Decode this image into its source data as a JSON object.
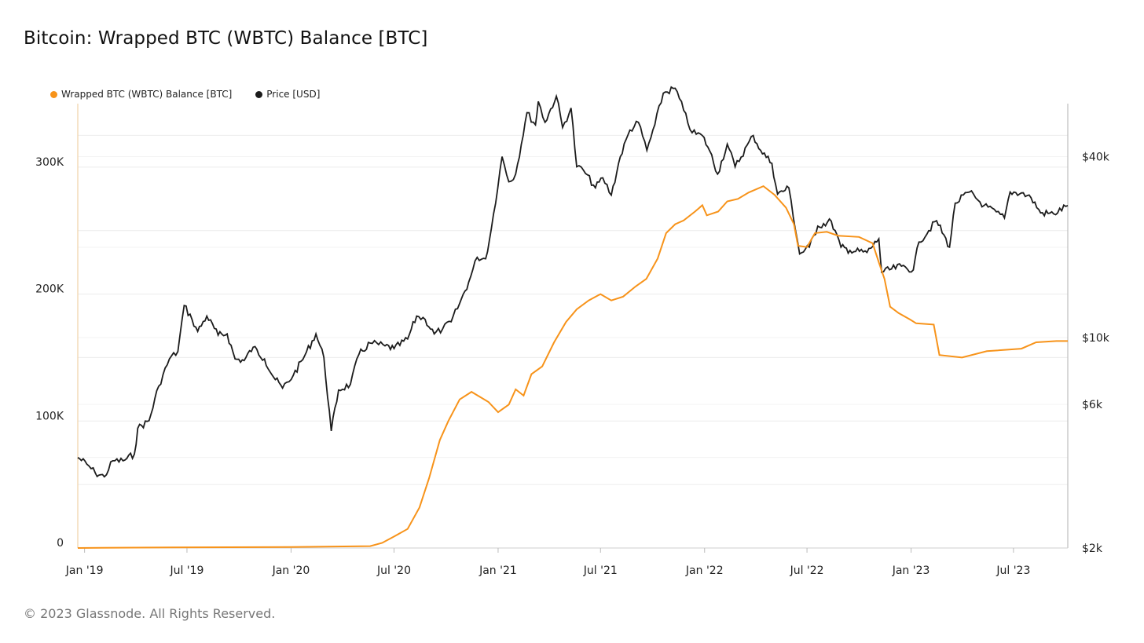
{
  "title": "Bitcoin: Wrapped BTC (WBTC) Balance [BTC]",
  "footer": "© 2023 Glassnode. All Rights Reserved.",
  "colors": {
    "wbtc": "#F7931A",
    "price": "#1c1c1c",
    "grid": "#ececec",
    "axis": "#bdbdbd"
  },
  "chart_data": {
    "type": "line",
    "title": "Bitcoin: Wrapped BTC (WBTC) Balance [BTC]",
    "x_ticks": [
      "Jan '19",
      "Jul '19",
      "Jan '20",
      "Jul '20",
      "Jan '21",
      "Jul '21",
      "Jan '22",
      "Jul '22",
      "Jan '23",
      "Jul '23"
    ],
    "x_range": [
      "2018-12-20",
      "2023-10-05"
    ],
    "y_left": {
      "ticks": [
        0,
        100000,
        200000,
        300000
      ],
      "tick_labels": [
        "0",
        "100K",
        "200K",
        "300K"
      ],
      "ylim": [
        0,
        350000
      ]
    },
    "y_right": {
      "scale": "log",
      "ticks": [
        2000,
        6000,
        10000,
        40000
      ],
      "tick_labels": [
        "$2k",
        "$6k",
        "$10k",
        "$40k"
      ],
      "ylim": [
        2000,
        60000
      ]
    },
    "grid": true,
    "legend_position": "top-left",
    "series": [
      {
        "name": "Wrapped BTC (WBTC) Balance [BTC]",
        "axis": "left",
        "color": "#F7931A",
        "points": [
          [
            "2018-12-20",
            0
          ],
          [
            "2019-06-01",
            500
          ],
          [
            "2020-01-01",
            800
          ],
          [
            "2020-05-20",
            1500
          ],
          [
            "2020-06-10",
            4000
          ],
          [
            "2020-07-01",
            9000
          ],
          [
            "2020-07-25",
            15000
          ],
          [
            "2020-08-15",
            32000
          ],
          [
            "2020-09-01",
            55000
          ],
          [
            "2020-09-20",
            85000
          ],
          [
            "2020-10-05",
            100000
          ],
          [
            "2020-10-25",
            117000
          ],
          [
            "2020-11-15",
            123000
          ],
          [
            "2020-12-15,",
            115000
          ],
          [
            "2021-01-01",
            107000
          ],
          [
            "2021-01-20",
            113000
          ],
          [
            "2021-02-01",
            125000
          ],
          [
            "2021-02-15",
            120000
          ],
          [
            "2021-03-01",
            137000
          ],
          [
            "2021-03-20",
            143000
          ],
          [
            "2021-04-10",
            162000
          ],
          [
            "2021-05-01",
            178000
          ],
          [
            "2021-05-20",
            188000
          ],
          [
            "2021-06-10",
            195000
          ],
          [
            "2021-07-01",
            200000
          ],
          [
            "2021-07-20",
            195000
          ],
          [
            "2021-08-10",
            198000
          ],
          [
            "2021-09-01",
            206000
          ],
          [
            "2021-09-20",
            212000
          ],
          [
            "2021-10-10",
            228000
          ],
          [
            "2021-10-25",
            248000
          ],
          [
            "2021-11-10",
            255000
          ],
          [
            "2021-11-25",
            258000
          ],
          [
            "2021-12-15",
            265000
          ],
          [
            "2021-12-28",
            270000
          ],
          [
            "2022-01-05",
            262000
          ],
          [
            "2022-01-25",
            265000
          ],
          [
            "2022-02-10",
            273000
          ],
          [
            "2022-03-01",
            275000
          ],
          [
            "2022-03-20",
            280000
          ],
          [
            "2022-04-15",
            285000
          ],
          [
            "2022-05-05",
            278000
          ],
          [
            "2022-05-25",
            268000
          ],
          [
            "2022-06-08",
            255000
          ],
          [
            "2022-06-15",
            238000
          ],
          [
            "2022-07-01",
            237000
          ],
          [
            "2022-07-15",
            248000
          ],
          [
            "2022-08-05",
            249000
          ],
          [
            "2022-08-25",
            246000
          ],
          [
            "2022-10-01",
            245000
          ],
          [
            "2022-10-25",
            240000
          ],
          [
            "2022-11-05",
            225000
          ],
          [
            "2022-11-15",
            212000
          ],
          [
            "2022-11-25",
            190000
          ],
          [
            "2022-12-10",
            185000
          ],
          [
            "2022-12-30",
            180000
          ],
          [
            "2023-01-10",
            177000
          ],
          [
            "2023-02-10",
            176000
          ],
          [
            "2023-02-20",
            152000
          ],
          [
            "2023-04-01",
            150000
          ],
          [
            "2023-05-15",
            155000
          ],
          [
            "2023-07-15",
            157000
          ],
          [
            "2023-08-10",
            162000
          ],
          [
            "2023-09-15",
            163000
          ],
          [
            "2023-10-05",
            163000
          ]
        ]
      },
      {
        "name": "Price [USD]",
        "axis": "right",
        "color": "#1c1c1c",
        "points": [
          [
            "2018-12-20",
            4000
          ],
          [
            "2019-01-05",
            3800
          ],
          [
            "2019-01-20",
            3550
          ],
          [
            "2019-02-05",
            3450
          ],
          [
            "2019-02-20",
            3900
          ],
          [
            "2019-03-10",
            3900
          ],
          [
            "2019-03-30",
            4100
          ],
          [
            "2019-04-05",
            5000
          ],
          [
            "2019-04-25",
            5300
          ],
          [
            "2019-05-12",
            6900
          ],
          [
            "2019-05-31",
            8500
          ],
          [
            "2019-06-15",
            9000
          ],
          [
            "2019-06-26",
            12800
          ],
          [
            "2019-07-10",
            11500
          ],
          [
            "2019-07-20",
            10500
          ],
          [
            "2019-08-05",
            11800
          ],
          [
            "2019-08-25",
            10200
          ],
          [
            "2019-09-10",
            10300
          ],
          [
            "2019-09-24",
            8500
          ],
          [
            "2019-10-10",
            8400
          ],
          [
            "2019-10-26",
            9300
          ],
          [
            "2019-11-15",
            8500
          ],
          [
            "2019-12-01",
            7400
          ],
          [
            "2019-12-17",
            6800
          ],
          [
            "2020-01-05",
            7500
          ],
          [
            "2020-01-25",
            8700
          ],
          [
            "2020-02-14",
            10300
          ],
          [
            "2020-02-28",
            8600
          ],
          [
            "2020-03-12",
            4900
          ],
          [
            "2020-03-25",
            6700
          ],
          [
            "2020-04-15",
            7000
          ],
          [
            "2020-04-30",
            8800
          ],
          [
            "2020-05-20",
            9600
          ],
          [
            "2020-06-15",
            9400
          ],
          [
            "2020-07-01",
            9200
          ],
          [
            "2020-07-25",
            9900
          ],
          [
            "2020-08-10",
            11800
          ],
          [
            "2020-08-25",
            11500
          ],
          [
            "2020-09-10",
            10300
          ],
          [
            "2020-09-25",
            10700
          ],
          [
            "2020-10-10",
            11300
          ],
          [
            "2020-10-25",
            13000
          ],
          [
            "2020-11-10",
            15300
          ],
          [
            "2020-11-25",
            18500
          ],
          [
            "2020-12-10",
            18300
          ],
          [
            "2020-12-20",
            23000
          ],
          [
            "2021-01-08",
            40000
          ],
          [
            "2021-01-20",
            33000
          ],
          [
            "2021-02-01",
            35000
          ],
          [
            "2021-02-21",
            56000
          ],
          [
            "2021-03-08",
            51000
          ],
          [
            "2021-03-13",
            61000
          ],
          [
            "2021-03-25",
            52000
          ],
          [
            "2021-04-14",
            63500
          ],
          [
            "2021-04-25",
            50000
          ],
          [
            "2021-05-10",
            58000
          ],
          [
            "2021-05-20",
            37000
          ],
          [
            "2021-06-01",
            36000
          ],
          [
            "2021-06-22",
            31500
          ],
          [
            "2021-07-05",
            34000
          ],
          [
            "2021-07-20",
            29800
          ],
          [
            "2021-08-05",
            40000
          ],
          [
            "2021-08-22",
            49000
          ],
          [
            "2021-09-06",
            52000
          ],
          [
            "2021-09-21",
            42000
          ],
          [
            "2021-10-05",
            51000
          ],
          [
            "2021-10-20",
            65000
          ],
          [
            "2021-11-10",
            67500
          ],
          [
            "2021-11-25",
            57000
          ],
          [
            "2021-12-10",
            48000
          ],
          [
            "2021-12-28",
            47000
          ],
          [
            "2022-01-10",
            41800
          ],
          [
            "2022-01-24",
            35000
          ],
          [
            "2022-02-10",
            44000
          ],
          [
            "2022-02-24",
            37000
          ],
          [
            "2022-03-28",
            47000
          ],
          [
            "2022-04-10",
            42000
          ],
          [
            "2022-04-30",
            38000
          ],
          [
            "2022-05-10",
            30000
          ],
          [
            "2022-05-30",
            31500
          ],
          [
            "2022-06-18",
            19000
          ],
          [
            "2022-07-05",
            20000
          ],
          [
            "2022-07-20",
            23500
          ],
          [
            "2022-08-13",
            24400
          ],
          [
            "2022-08-30",
            20000
          ],
          [
            "2022-09-15",
            19500
          ],
          [
            "2022-10-15",
            19200
          ],
          [
            "2022-11-05",
            21300
          ],
          [
            "2022-11-10",
            16500
          ],
          [
            "2022-12-15",
            17300
          ],
          [
            "2023-01-05",
            16800
          ],
          [
            "2023-01-15",
            20800
          ],
          [
            "2023-02-15",
            24500
          ],
          [
            "2023-03-10",
            20000
          ],
          [
            "2023-03-20",
            28000
          ],
          [
            "2023-04-14",
            30500
          ],
          [
            "2023-05-10",
            27500
          ],
          [
            "2023-06-15",
            25000
          ],
          [
            "2023-06-25",
            30500
          ],
          [
            "2023-07-15",
            30300
          ],
          [
            "2023-08-01",
            29200
          ],
          [
            "2023-08-18",
            26000
          ],
          [
            "2023-09-10",
            25800
          ],
          [
            "2023-10-05",
            27500
          ]
        ]
      }
    ]
  }
}
